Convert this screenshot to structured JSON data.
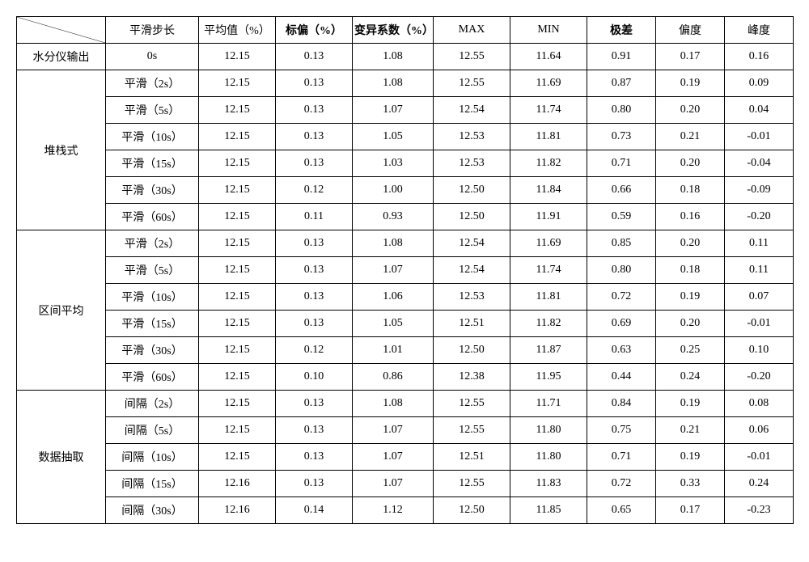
{
  "colors": {
    "border": "#000000",
    "background": "#ffffff",
    "text": "#000000"
  },
  "fontsize": 14,
  "header": {
    "c1": "平滑步长",
    "c2": "平均值（%）",
    "c3": "标偏（%）",
    "c4": "变异系数（%）",
    "c5": "MAX",
    "c6": "MIN",
    "c7": "极差",
    "c8": "偏度",
    "c9": "峰度"
  },
  "groups": [
    {
      "label": "水分仪输出",
      "rows": [
        {
          "step": "0s",
          "avg": "12.15",
          "std": "0.13",
          "cv": "1.08",
          "max": "12.55",
          "min": "11.64",
          "range": "0.91",
          "skew": "0.17",
          "kurt": "0.16"
        }
      ]
    },
    {
      "label": "堆栈式",
      "rows": [
        {
          "step": "平滑（2s）",
          "avg": "12.15",
          "std": "0.13",
          "cv": "1.08",
          "max": "12.55",
          "min": "11.69",
          "range": "0.87",
          "skew": "0.19",
          "kurt": "0.09"
        },
        {
          "step": "平滑（5s）",
          "avg": "12.15",
          "std": "0.13",
          "cv": "1.07",
          "max": "12.54",
          "min": "11.74",
          "range": "0.80",
          "skew": "0.20",
          "kurt": "0.04"
        },
        {
          "step": "平滑（10s）",
          "avg": "12.15",
          "std": "0.13",
          "cv": "1.05",
          "max": "12.53",
          "min": "11.81",
          "range": "0.73",
          "skew": "0.21",
          "kurt": "-0.01"
        },
        {
          "step": "平滑（15s）",
          "avg": "12.15",
          "std": "0.13",
          "cv": "1.03",
          "max": "12.53",
          "min": "11.82",
          "range": "0.71",
          "skew": "0.20",
          "kurt": "-0.04"
        },
        {
          "step": "平滑（30s）",
          "avg": "12.15",
          "std": "0.12",
          "cv": "1.00",
          "max": "12.50",
          "min": "11.84",
          "range": "0.66",
          "skew": "0.18",
          "kurt": "-0.09"
        },
        {
          "step": "平滑（60s）",
          "avg": "12.15",
          "std": "0.11",
          "cv": "0.93",
          "max": "12.50",
          "min": "11.91",
          "range": "0.59",
          "skew": "0.16",
          "kurt": "-0.20"
        }
      ]
    },
    {
      "label": "区间平均",
      "rows": [
        {
          "step": "平滑（2s）",
          "avg": "12.15",
          "std": "0.13",
          "cv": "1.08",
          "max": "12.54",
          "min": "11.69",
          "range": "0.85",
          "skew": "0.20",
          "kurt": "0.11"
        },
        {
          "step": "平滑（5s）",
          "avg": "12.15",
          "std": "0.13",
          "cv": "1.07",
          "max": "12.54",
          "min": "11.74",
          "range": "0.80",
          "skew": "0.18",
          "kurt": "0.11"
        },
        {
          "step": "平滑（10s）",
          "avg": "12.15",
          "std": "0.13",
          "cv": "1.06",
          "max": "12.53",
          "min": "11.81",
          "range": "0.72",
          "skew": "0.19",
          "kurt": "0.07"
        },
        {
          "step": "平滑（15s）",
          "avg": "12.15",
          "std": "0.13",
          "cv": "1.05",
          "max": "12.51",
          "min": "11.82",
          "range": "0.69",
          "skew": "0.20",
          "kurt": "-0.01"
        },
        {
          "step": "平滑（30s）",
          "avg": "12.15",
          "std": "0.12",
          "cv": "1.01",
          "max": "12.50",
          "min": "11.87",
          "range": "0.63",
          "skew": "0.25",
          "kurt": "0.10"
        },
        {
          "step": "平滑（60s）",
          "avg": "12.15",
          "std": "0.10",
          "cv": "0.86",
          "max": "12.38",
          "min": "11.95",
          "range": "0.44",
          "skew": "0.24",
          "kurt": "-0.20"
        }
      ]
    },
    {
      "label": "数据抽取",
      "rows": [
        {
          "step": "间隔（2s）",
          "avg": "12.15",
          "std": "0.13",
          "cv": "1.08",
          "max": "12.55",
          "min": "11.71",
          "range": "0.84",
          "skew": "0.19",
          "kurt": "0.08"
        },
        {
          "step": "间隔（5s）",
          "avg": "12.15",
          "std": "0.13",
          "cv": "1.07",
          "max": "12.55",
          "min": "11.80",
          "range": "0.75",
          "skew": "0.21",
          "kurt": "0.06"
        },
        {
          "step": "间隔（10s）",
          "avg": "12.15",
          "std": "0.13",
          "cv": "1.07",
          "max": "12.51",
          "min": "11.80",
          "range": "0.71",
          "skew": "0.19",
          "kurt": "-0.01"
        },
        {
          "step": "间隔（15s）",
          "avg": "12.16",
          "std": "0.13",
          "cv": "1.07",
          "max": "12.55",
          "min": "11.83",
          "range": "0.72",
          "skew": "0.33",
          "kurt": "0.24"
        },
        {
          "step": "间隔（30s）",
          "avg": "12.16",
          "std": "0.14",
          "cv": "1.12",
          "max": "12.50",
          "min": "11.85",
          "range": "0.65",
          "skew": "0.17",
          "kurt": "-0.23"
        }
      ]
    }
  ]
}
